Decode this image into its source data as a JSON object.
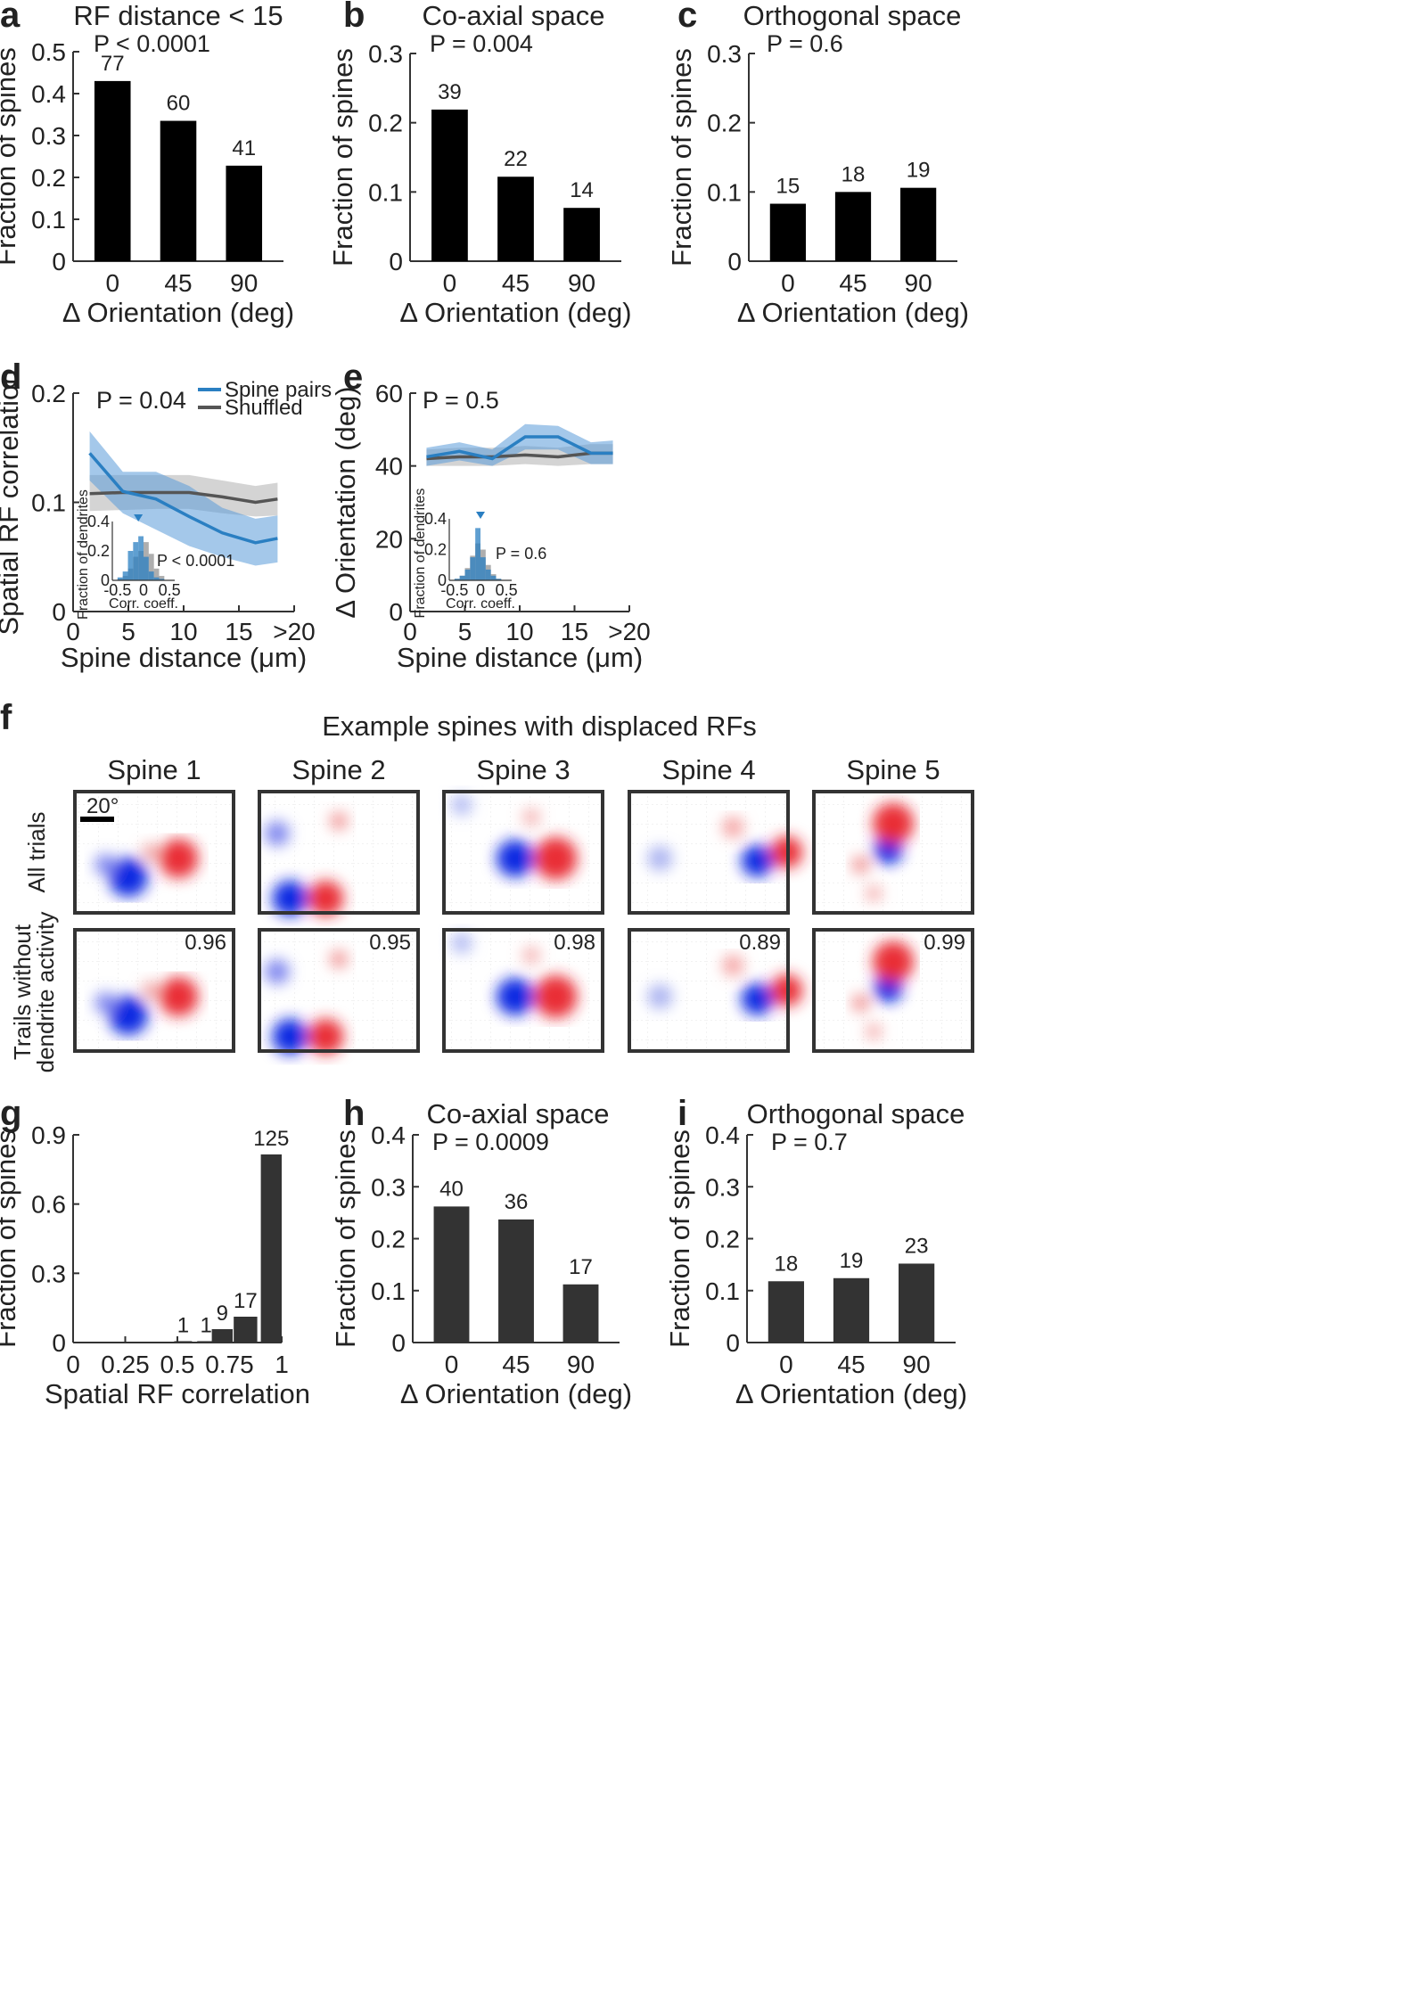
{
  "figure": {
    "panel_labels": [
      "a",
      "b",
      "c",
      "d",
      "e",
      "f",
      "g",
      "h",
      "i"
    ],
    "f": {
      "title": "Example spines with displaced RFs",
      "spines": [
        "Spine 1",
        "Spine 2",
        "Spine 3",
        "Spine 4",
        "Spine 5"
      ],
      "row_labels": [
        "All trials",
        "Trails without",
        "dendrite activity"
      ],
      "scale_label": "20°",
      "correlations": [
        "0.96",
        "0.95",
        "0.98",
        "0.89",
        "0.99"
      ]
    }
  },
  "chart_data": [
    {
      "panel": "a",
      "type": "bar",
      "title": "RF distance < 15",
      "stat": "P < 0.0001",
      "categories": [
        "0",
        "45",
        "90"
      ],
      "values": [
        0.43,
        0.335,
        0.228
      ],
      "bar_labels": [
        "77",
        "60",
        "41"
      ],
      "bar_color": "#000000",
      "xlabel": "Δ Orientation (deg)",
      "ylabel": "Fraction of spines",
      "ylim": [
        0,
        0.5
      ],
      "yticks": [
        0,
        0.1,
        0.2,
        0.3,
        0.4,
        0.5
      ],
      "yticklabels": [
        "0",
        "0.1",
        "0.2",
        "0.3",
        "0.4",
        "0.5"
      ]
    },
    {
      "panel": "b",
      "type": "bar",
      "title": "Co-axial space",
      "stat": "P = 0.004",
      "categories": [
        "0",
        "45",
        "90"
      ],
      "values": [
        0.219,
        0.122,
        0.077
      ],
      "bar_labels": [
        "39",
        "22",
        "14"
      ],
      "bar_color": "#000000",
      "xlabel": "Δ Orientation (deg)",
      "ylabel": "Fraction of spines",
      "ylim": [
        0,
        0.3
      ],
      "yticks": [
        0,
        0.1,
        0.2,
        0.3
      ],
      "yticklabels": [
        "0",
        "0.1",
        "0.2",
        "0.3"
      ]
    },
    {
      "panel": "c",
      "type": "bar",
      "title": "Orthogonal space",
      "stat": "P = 0.6",
      "categories": [
        "0",
        "45",
        "90"
      ],
      "values": [
        0.083,
        0.1,
        0.106
      ],
      "bar_labels": [
        "15",
        "18",
        "19"
      ],
      "bar_color": "#000000",
      "xlabel": "Δ Orientation (deg)",
      "ylabel": "Fraction of spines",
      "ylim": [
        0,
        0.3
      ],
      "yticks": [
        0,
        0.1,
        0.2,
        0.3
      ],
      "yticklabels": [
        "0",
        "0.1",
        "0.2",
        "0.3"
      ]
    },
    {
      "panel": "d",
      "type": "line",
      "stat": "P = 0.04",
      "xlabel": "Spine distance (μm)",
      "ylabel": "Spatial RF correlation",
      "xlim": [
        0,
        20
      ],
      "ylim": [
        0,
        0.2
      ],
      "xticks": [
        0,
        5,
        10,
        15,
        20
      ],
      "xticklabels": [
        "0",
        "5",
        "10",
        "15",
        ">20"
      ],
      "yticks": [
        0,
        0.1,
        0.2
      ],
      "yticklabels": [
        "0",
        "0.1",
        "0.2"
      ],
      "legend": [
        "Spine pairs",
        "Shuffled"
      ],
      "series": [
        {
          "name": "Spine pairs",
          "color": "#2a7fc2",
          "band_color": "#5a9ad8",
          "x": [
            1.5,
            4.5,
            7.5,
            10.5,
            13.5,
            16.5,
            18.5
          ],
          "y": [
            0.145,
            0.11,
            0.103,
            0.087,
            0.072,
            0.063,
            0.067
          ],
          "lower": [
            0.12,
            0.09,
            0.075,
            0.06,
            0.05,
            0.042,
            0.045
          ],
          "upper": [
            0.165,
            0.128,
            0.128,
            0.115,
            0.095,
            0.085,
            0.088
          ]
        },
        {
          "name": "Shuffled",
          "color": "#555555",
          "band_color": "#aaaaaa",
          "x": [
            1.5,
            4.5,
            7.5,
            10.5,
            13.5,
            16.5,
            18.5
          ],
          "y": [
            0.108,
            0.109,
            0.109,
            0.109,
            0.105,
            0.1,
            0.103
          ],
          "lower": [
            0.092,
            0.093,
            0.094,
            0.094,
            0.09,
            0.087,
            0.088
          ],
          "upper": [
            0.125,
            0.125,
            0.125,
            0.125,
            0.12,
            0.115,
            0.118
          ]
        }
      ],
      "inset": {
        "type": "histogram",
        "stat": "P < 0.0001",
        "xlabel": "Corr. coeff.",
        "ylabel": "Fraction of dendrites",
        "xlim": [
          -0.6,
          0.6
        ],
        "ylim": [
          0,
          0.4
        ],
        "xticks": [
          -0.5,
          0,
          0.5
        ],
        "xticklabels": [
          "-0.5",
          "0",
          "0.5"
        ],
        "yticks": [
          0,
          0.2,
          0.4
        ],
        "yticklabels": [
          "0",
          "0.2",
          "0.4"
        ],
        "bin_edges": [
          -0.5,
          -0.4,
          -0.3,
          -0.2,
          -0.1,
          0,
          0.1,
          0.2,
          0.3,
          0.4
        ],
        "series": [
          {
            "name": "Spine pairs",
            "color": "#2a7fc2",
            "values": [
              0.02,
              0.06,
              0.2,
              0.26,
              0.3,
              0.16,
              0.06,
              0.02,
              0.01
            ]
          },
          {
            "name": "Shuffled",
            "color": "#8c8c8c",
            "values": [
              0.01,
              0.03,
              0.08,
              0.16,
              0.2,
              0.26,
              0.18,
              0.08,
              0.03
            ]
          }
        ],
        "marker_x": -0.1
      }
    },
    {
      "panel": "e",
      "type": "line",
      "stat": "P =  0.5",
      "xlabel": "Spine distance (μm)",
      "ylabel": "Δ Orientation (deg)",
      "xlim": [
        0,
        20
      ],
      "ylim": [
        0,
        60
      ],
      "xticks": [
        0,
        5,
        10,
        15,
        20
      ],
      "xticklabels": [
        "0",
        "5",
        "10",
        "15",
        ">20"
      ],
      "yticks": [
        0,
        20,
        40,
        60
      ],
      "yticklabels": [
        "0",
        "20",
        "40",
        "60"
      ],
      "series": [
        {
          "name": "Spine pairs",
          "color": "#2a7fc2",
          "band_color": "#5a9ad8",
          "x": [
            1.5,
            4.5,
            7.5,
            10.5,
            13.5,
            16.5,
            18.5
          ],
          "y": [
            42.5,
            44,
            42,
            48,
            48,
            43.5,
            43.5
          ],
          "lower": [
            40,
            41.5,
            40,
            44.5,
            44.5,
            40.5,
            40.5
          ],
          "upper": [
            45,
            46.5,
            44.5,
            51.5,
            51,
            46.5,
            47
          ]
        },
        {
          "name": "Shuffled",
          "color": "#555555",
          "band_color": "#aaaaaa",
          "x": [
            1.5,
            4.5,
            7.5,
            10.5,
            13.5,
            16.5,
            18.5
          ],
          "y": [
            42,
            42.5,
            42.5,
            43,
            42.5,
            43.5,
            43.5
          ],
          "lower": [
            40,
            40,
            40,
            40.5,
            40,
            40.5,
            40.5
          ],
          "upper": [
            44.5,
            45,
            45,
            45.5,
            45,
            46,
            46
          ]
        }
      ],
      "inset": {
        "type": "histogram",
        "stat": "P = 0.6",
        "xlabel": "Corr. coeff.",
        "ylabel": "Fraction of dendrites",
        "xlim": [
          -0.6,
          0.6
        ],
        "ylim": [
          0,
          0.4
        ],
        "xticks": [
          -0.5,
          0,
          0.5
        ],
        "xticklabels": [
          "-0.5",
          "0",
          "0.5"
        ],
        "yticks": [
          0,
          0.2,
          0.4
        ],
        "yticklabels": [
          "0",
          "0.2",
          "0.4"
        ],
        "bin_edges": [
          -0.5,
          -0.4,
          -0.3,
          -0.2,
          -0.1,
          0,
          0.1,
          0.2,
          0.3,
          0.4
        ],
        "series": [
          {
            "name": "Spine pairs",
            "color": "#2a7fc2",
            "values": [
              0.01,
              0.03,
              0.07,
              0.15,
              0.34,
              0.15,
              0.07,
              0.03,
              0.01
            ]
          },
          {
            "name": "Shuffled",
            "color": "#8c8c8c",
            "values": [
              0.01,
              0.03,
              0.08,
              0.16,
              0.24,
              0.2,
              0.1,
              0.04,
              0.01
            ]
          }
        ],
        "marker_x": 0.0
      }
    },
    {
      "panel": "g",
      "type": "bar",
      "categories": [
        "0.5-0.625",
        "0.625-0.75",
        "0.75-0.875",
        "0.875-1",
        "1"
      ],
      "values": [
        0.006,
        0.006,
        0.058,
        0.112,
        0.815
      ],
      "bar_labels": [
        "1",
        "1",
        "9",
        "17",
        "125"
      ],
      "bar_color": "#333333",
      "xlabel": "Spatial RF correlation",
      "ylabel": "Fraction of spines",
      "xlim": [
        0,
        1
      ],
      "xticks": [
        0,
        0.25,
        0.5,
        0.75,
        1
      ],
      "xticklabels": [
        "0",
        "0.25",
        "0.5",
        "0.75",
        "1"
      ],
      "ylim": [
        0,
        0.9
      ],
      "yticks": [
        0,
        0.3,
        0.6,
        0.9
      ],
      "yticklabels": [
        "0",
        "0.3",
        "0.6",
        "0.9"
      ]
    },
    {
      "panel": "h",
      "type": "bar",
      "title": "Co-axial space",
      "stat": "P = 0.0009",
      "categories": [
        "0",
        "45",
        "90"
      ],
      "values": [
        0.262,
        0.237,
        0.112
      ],
      "bar_labels": [
        "40",
        "36",
        "17"
      ],
      "bar_color": "#333333",
      "xlabel": "Δ Orientation (deg)",
      "ylabel": "Fraction of spines",
      "ylim": [
        0,
        0.4
      ],
      "yticks": [
        0,
        0.1,
        0.2,
        0.3,
        0.4
      ],
      "yticklabels": [
        "0",
        "0.1",
        "0.2",
        "0.3",
        "0.4"
      ]
    },
    {
      "panel": "i",
      "type": "bar",
      "title": "Orthogonal space",
      "stat": "P = 0.7",
      "categories": [
        "0",
        "45",
        "90"
      ],
      "values": [
        0.118,
        0.124,
        0.152
      ],
      "bar_labels": [
        "18",
        "19",
        "23"
      ],
      "bar_color": "#333333",
      "xlabel": "Δ Orientation (deg)",
      "ylabel": "Fraction of spines",
      "ylim": [
        0,
        0.4
      ],
      "yticks": [
        0,
        0.1,
        0.2,
        0.3,
        0.4
      ],
      "yticklabels": [
        "0",
        "0.1",
        "0.2",
        "0.3",
        "0.4"
      ]
    }
  ]
}
